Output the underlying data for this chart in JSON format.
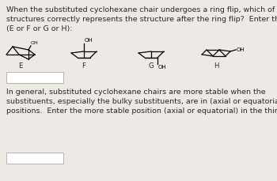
{
  "bg_color": "#ede9e4",
  "card_color": "#ffffff",
  "text_color": "#2a2a2a",
  "title_text": "When the substituted cyclohexane chair undergoes a ring flip, which of the\nstructures correctly represents the structure after the ring flip?  Enter the letter\n(E or F or G or H):",
  "bottom_text": "In general, substituted cyclohexane chairs are more stable when the\nsubstituents, especially the bulky substituents, are in (axial or equatorial)\npositions.  Enter the more stable position (axial or equatorial) in the third blank.",
  "labels": [
    "E",
    "F",
    "G",
    "H"
  ],
  "font_size_body": 6.8,
  "font_size_label": 6.2,
  "font_size_oh": 5.0
}
